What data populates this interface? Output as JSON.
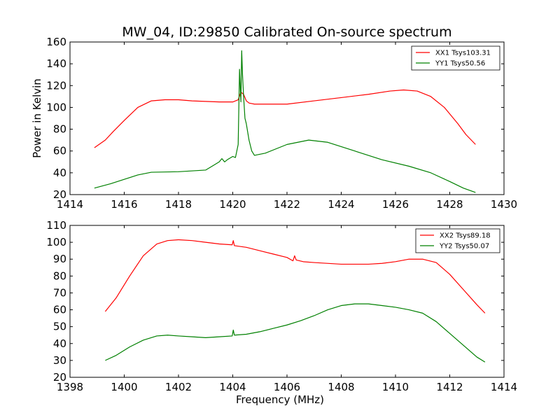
{
  "figure": {
    "title": "MW_04, ID:29850 Calibrated On-source spectrum"
  },
  "chart_data": [
    {
      "type": "line",
      "title": "MW_04, ID:29850 Calibrated On-source spectrum",
      "xlabel": "",
      "ylabel": "Power in Kelvin",
      "xlim": [
        1414,
        1430
      ],
      "ylim": [
        20,
        160
      ],
      "xticks": [
        1414,
        1416,
        1418,
        1420,
        1422,
        1424,
        1426,
        1428,
        1430
      ],
      "yticks": [
        20,
        40,
        60,
        80,
        100,
        120,
        140,
        160
      ],
      "grid": false,
      "legend_position": "top-right",
      "series": [
        {
          "name": "XX1 Tsys103.31",
          "color": "#ff0000",
          "x": [
            1414.9,
            1415.3,
            1415.6,
            1416.0,
            1416.5,
            1417.0,
            1417.5,
            1418.0,
            1418.5,
            1419.0,
            1419.5,
            1419.8,
            1420.0,
            1420.2,
            1420.3,
            1420.4,
            1420.5,
            1420.6,
            1420.8,
            1421.2,
            1422.0,
            1423.0,
            1424.0,
            1425.0,
            1425.8,
            1426.3,
            1426.8,
            1427.3,
            1427.8,
            1428.3,
            1428.6,
            1428.95
          ],
          "y": [
            63,
            70,
            78,
            88,
            100,
            106,
            107,
            107,
            106,
            105.5,
            105,
            105,
            105,
            107,
            114,
            112,
            106,
            104,
            103,
            103,
            103,
            106,
            109,
            112,
            115,
            116,
            115,
            110,
            100,
            85,
            75,
            66
          ]
        },
        {
          "name": "YY1 Tsys50.56",
          "color": "#008000",
          "x": [
            1414.9,
            1415.5,
            1416.0,
            1416.5,
            1417.0,
            1418.0,
            1419.0,
            1419.3,
            1419.5,
            1419.6,
            1419.7,
            1419.8,
            1420.0,
            1420.1,
            1420.2,
            1420.25,
            1420.3,
            1420.33,
            1420.36,
            1420.4,
            1420.45,
            1420.5,
            1420.6,
            1420.7,
            1420.8,
            1421.2,
            1422.0,
            1422.8,
            1423.5,
            1424.5,
            1425.5,
            1426.5,
            1427.3,
            1428.0,
            1428.5,
            1428.95
          ],
          "y": [
            26,
            30,
            34,
            38,
            40.5,
            41,
            42.5,
            47,
            50,
            53,
            50,
            52,
            55,
            54,
            66,
            135,
            105,
            152,
            130,
            110,
            90,
            85,
            70,
            60,
            56,
            58,
            66,
            70,
            68,
            60,
            52,
            46,
            40,
            32,
            26,
            22
          ]
        }
      ]
    },
    {
      "type": "line",
      "title": "",
      "xlabel": "Frequency (MHz)",
      "ylabel": "",
      "xlim": [
        1398,
        1414
      ],
      "ylim": [
        20,
        110
      ],
      "xticks": [
        1398,
        1400,
        1402,
        1404,
        1406,
        1408,
        1410,
        1412,
        1414
      ],
      "yticks": [
        20,
        30,
        40,
        50,
        60,
        70,
        80,
        90,
        100,
        110
      ],
      "grid": false,
      "legend_position": "top-right",
      "series": [
        {
          "name": "XX2 Tsys89.18",
          "color": "#ff0000",
          "x": [
            1399.3,
            1399.7,
            1400.2,
            1400.7,
            1401.2,
            1401.6,
            1402.0,
            1402.5,
            1403.0,
            1403.5,
            1403.98,
            1404.02,
            1404.06,
            1404.5,
            1405.0,
            1405.5,
            1406.0,
            1406.22,
            1406.28,
            1406.34,
            1406.6,
            1407.0,
            1408.0,
            1409.0,
            1409.5,
            1410.0,
            1410.5,
            1411.0,
            1411.5,
            1412.0,
            1412.5,
            1413.0,
            1413.3
          ],
          "y": [
            59,
            67,
            80,
            92,
            99,
            101,
            101.5,
            101,
            100,
            99,
            98.5,
            101,
            98,
            97,
            95,
            93,
            91,
            89,
            92,
            89.5,
            88.5,
            88,
            87,
            87,
            87.5,
            88.5,
            90,
            90,
            88,
            81,
            72,
            63,
            58
          ]
        },
        {
          "name": "YY2 Tsys50.07",
          "color": "#008000",
          "x": [
            1399.3,
            1399.7,
            1400.2,
            1400.7,
            1401.2,
            1401.6,
            1402.0,
            1402.5,
            1403.0,
            1403.5,
            1403.98,
            1404.02,
            1404.06,
            1404.5,
            1405.0,
            1405.5,
            1406.0,
            1406.5,
            1407.0,
            1407.5,
            1408.0,
            1408.5,
            1409.0,
            1409.5,
            1410.0,
            1410.5,
            1411.0,
            1411.5,
            1412.0,
            1412.5,
            1413.0,
            1413.3
          ],
          "y": [
            30,
            33,
            38,
            42,
            44.5,
            45,
            44.5,
            44,
            43.5,
            44,
            44.5,
            48,
            45,
            45.5,
            47,
            49,
            51,
            53.5,
            56.5,
            60,
            62.5,
            63.5,
            63.5,
            62.5,
            61.5,
            60,
            58,
            53,
            46,
            39,
            32,
            29
          ]
        }
      ]
    }
  ]
}
